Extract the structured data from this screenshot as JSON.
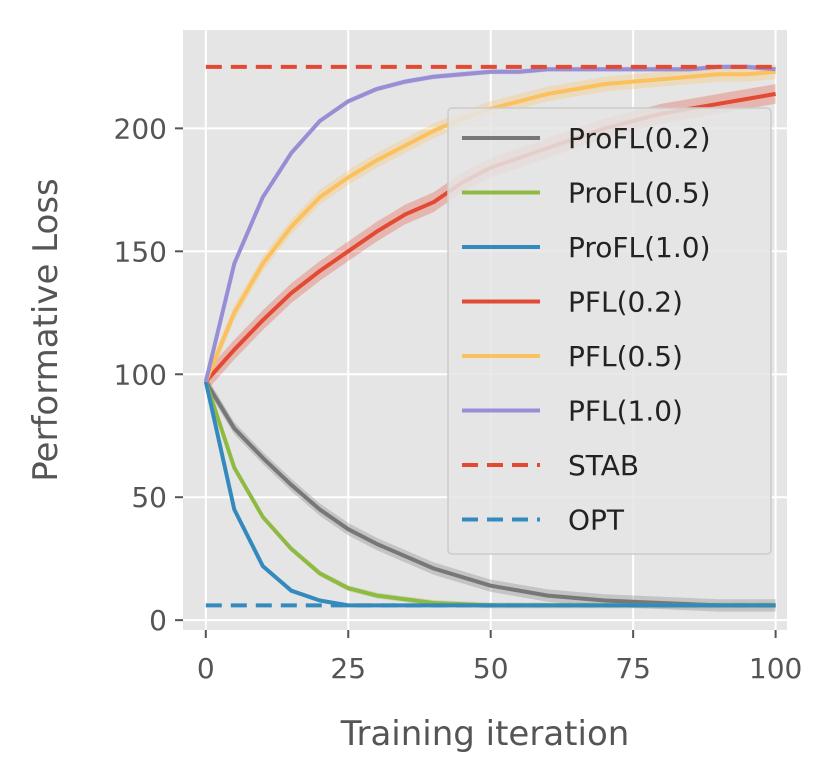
{
  "chart_data": {
    "type": "line",
    "title": "",
    "xlabel": "Training iteration",
    "ylabel": "Performative Loss",
    "xlim": [
      -4,
      102
    ],
    "ylim": [
      -4,
      240
    ],
    "xticks": [
      0,
      25,
      50,
      75,
      100
    ],
    "yticks": [
      0,
      50,
      100,
      150,
      200
    ],
    "grid": true,
    "legend_position": "right",
    "series": [
      {
        "name": "ProFL(0.2)",
        "color": "#777777",
        "style": "solid",
        "x": [
          0,
          5,
          10,
          15,
          20,
          25,
          30,
          40,
          50,
          60,
          70,
          80,
          90,
          100
        ],
        "values": [
          97,
          78,
          66,
          55,
          45,
          37,
          31,
          21,
          14,
          10,
          8,
          7,
          6,
          6
        ],
        "band": 2.5
      },
      {
        "name": "ProFL(0.5)",
        "color": "#8EBA42",
        "style": "solid",
        "x": [
          0,
          5,
          10,
          15,
          20,
          25,
          30,
          40,
          50,
          60,
          70,
          80,
          90,
          100
        ],
        "values": [
          97,
          62,
          42,
          29,
          19,
          13,
          10,
          7,
          6,
          6,
          6,
          6,
          6,
          6
        ],
        "band": 1.2
      },
      {
        "name": "ProFL(1.0)",
        "color": "#348ABD",
        "style": "solid",
        "x": [
          0,
          5,
          10,
          15,
          20,
          25,
          30,
          40,
          50,
          60,
          70,
          80,
          90,
          100
        ],
        "values": [
          97,
          45,
          22,
          12,
          8,
          6,
          6,
          6,
          6,
          6,
          6,
          6,
          6,
          6
        ],
        "band": 0.5
      },
      {
        "name": "PFL(0.2)",
        "color": "#E24A33",
        "style": "solid",
        "x": [
          0,
          5,
          10,
          15,
          20,
          25,
          30,
          35,
          40,
          45,
          50,
          55,
          60,
          65,
          70,
          75,
          80,
          85,
          90,
          95,
          100
        ],
        "values": [
          97,
          110,
          122,
          133,
          142,
          150,
          158,
          165,
          170,
          178,
          184,
          188,
          192,
          196,
          200,
          203,
          206,
          208,
          210,
          212,
          214
        ],
        "band": 4
      },
      {
        "name": "PFL(0.5)",
        "color": "#FBC15E",
        "style": "solid",
        "x": [
          0,
          5,
          10,
          15,
          20,
          25,
          30,
          35,
          40,
          45,
          50,
          55,
          60,
          65,
          70,
          75,
          80,
          85,
          90,
          95,
          100
        ],
        "values": [
          97,
          125,
          145,
          160,
          172,
          180,
          187,
          193,
          199,
          204,
          208,
          211,
          214,
          216,
          218,
          219,
          220,
          221,
          222,
          222,
          223
        ],
        "band": 3
      },
      {
        "name": "PFL(1.0)",
        "color": "#988ED5",
        "style": "solid",
        "x": [
          0,
          5,
          10,
          15,
          20,
          25,
          30,
          35,
          40,
          45,
          50,
          55,
          60,
          65,
          70,
          75,
          80,
          85,
          90,
          95,
          100
        ],
        "values": [
          97,
          145,
          172,
          190,
          203,
          211,
          216,
          219,
          221,
          222,
          223,
          223,
          224,
          224,
          224,
          224,
          224,
          224,
          225,
          225,
          224
        ],
        "band": 1
      },
      {
        "name": "STAB",
        "color": "#E24A33",
        "style": "dashed",
        "x": [
          0,
          100
        ],
        "values": [
          225,
          225
        ],
        "band": 0
      },
      {
        "name": "OPT",
        "color": "#348ABD",
        "style": "dashed",
        "x": [
          0,
          100
        ],
        "values": [
          6,
          6
        ],
        "band": 0
      }
    ]
  }
}
